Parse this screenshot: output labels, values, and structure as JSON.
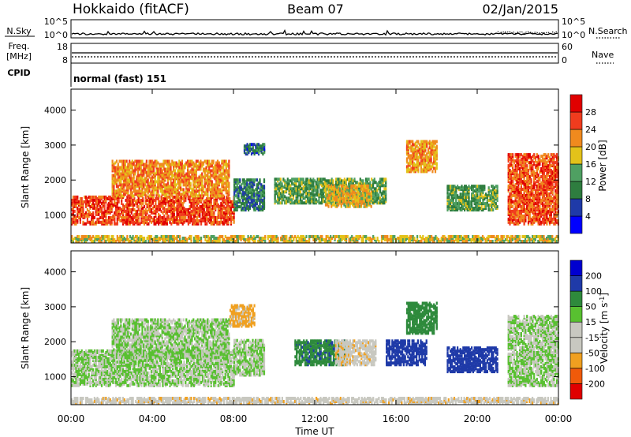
{
  "header": {
    "station": "Hokkaido (fitACF)",
    "beam": "Beam 07",
    "date": "02/Jan/2015"
  },
  "noise_panel": {
    "left_label": "N.Sky",
    "right_label": "N.Search",
    "left_ticks": [
      "10^5",
      "10^0"
    ],
    "right_ticks": [
      "10^5",
      "10^0"
    ]
  },
  "freq_panel": {
    "left_label_1": "Freq.",
    "left_label_2": "[MHz]",
    "right_label": "Nave",
    "left_ticks": [
      "18",
      "8"
    ],
    "right_ticks": [
      "60",
      "0"
    ]
  },
  "cpid": {
    "label": "CPID",
    "mode_text": "normal (fast) 151"
  },
  "time_axis": {
    "label": "Time UT",
    "ticks": [
      "00:00",
      "04:00",
      "08:00",
      "12:00",
      "16:00",
      "20:00",
      "00:00"
    ]
  },
  "colors": {
    "power_scale": [
      "#0000ff",
      "#1f3aa8",
      "#2e7d3f",
      "#4fa062",
      "#e3c21a",
      "#f08a1e",
      "#f03c1e",
      "#e00000"
    ],
    "velocity_scale": [
      "#e00000",
      "#f05a0a",
      "#f0a020",
      "#c8c8c0",
      "#c8c8c0",
      "#58c030",
      "#2e8a3c",
      "#1f3aa8",
      "#0000d0"
    ]
  },
  "chart_data": [
    {
      "type": "heatmap",
      "title": "Power",
      "xlabel": "Time UT",
      "ylabel": "Slant Range [km]",
      "x_ticks": [
        "00:00",
        "04:00",
        "08:00",
        "12:00",
        "16:00",
        "20:00",
        "00:00"
      ],
      "x_range_hours": [
        0,
        24
      ],
      "ylim": [
        200,
        4600
      ],
      "y_ticks": [
        1000,
        2000,
        3000,
        4000
      ],
      "colorbar": {
        "label": "Power [dB]",
        "ticks": [
          4,
          8,
          12,
          16,
          20,
          24,
          28
        ],
        "range": [
          0,
          32
        ]
      },
      "regions": [
        {
          "t_start": 0.0,
          "t_end": 8.0,
          "r_low": 700,
          "r_high": 1500,
          "value": 26
        },
        {
          "t_start": 2.0,
          "t_end": 7.8,
          "r_low": 1500,
          "r_high": 2500,
          "value": 22
        },
        {
          "t_start": 8.0,
          "t_end": 9.5,
          "r_low": 1100,
          "r_high": 2000,
          "value": 10
        },
        {
          "t_start": 8.5,
          "t_end": 9.5,
          "r_low": 2700,
          "r_high": 3000,
          "value": 8
        },
        {
          "t_start": 10.0,
          "t_end": 15.5,
          "r_low": 1300,
          "r_high": 2000,
          "value": 13
        },
        {
          "t_start": 12.5,
          "t_end": 14.8,
          "r_low": 1200,
          "r_high": 1800,
          "value": 19
        },
        {
          "t_start": 16.5,
          "t_end": 18.0,
          "r_low": 2200,
          "r_high": 3100,
          "value": 21
        },
        {
          "t_start": 18.5,
          "t_end": 21.0,
          "r_low": 1100,
          "r_high": 1800,
          "value": 13
        },
        {
          "t_start": 21.5,
          "t_end": 24.0,
          "r_low": 700,
          "r_high": 2700,
          "value": 25
        },
        {
          "t_start": 0.0,
          "t_end": 24.0,
          "r_low": 200,
          "r_high": 350,
          "value": 18
        }
      ]
    },
    {
      "type": "heatmap",
      "title": "Velocity",
      "xlabel": "Time UT",
      "ylabel": "Slant Range [km]",
      "x_ticks": [
        "00:00",
        "04:00",
        "08:00",
        "12:00",
        "16:00",
        "20:00",
        "00:00"
      ],
      "x_range_hours": [
        0,
        24
      ],
      "ylim": [
        200,
        4600
      ],
      "y_ticks": [
        1000,
        2000,
        3000,
        4000
      ],
      "colorbar": {
        "label": "Velocity [m s^-1]",
        "ticks": [
          "-200",
          "-100",
          "-50",
          "-15",
          "15",
          "50",
          "100",
          "200"
        ]
      },
      "regions": [
        {
          "t_start": 0.0,
          "t_end": 8.0,
          "r_low": 700,
          "r_high": 1700,
          "value": 0
        },
        {
          "t_start": 2.0,
          "t_end": 7.8,
          "r_low": 1500,
          "r_high": 2600,
          "value": 0
        },
        {
          "t_start": 7.8,
          "t_end": 9.0,
          "r_low": 2400,
          "r_high": 3000,
          "value": -60
        },
        {
          "t_start": 8.0,
          "t_end": 9.5,
          "r_low": 1000,
          "r_high": 2000,
          "value": 0
        },
        {
          "t_start": 11.0,
          "t_end": 13.5,
          "r_low": 1300,
          "r_high": 2000,
          "value": 40
        },
        {
          "t_start": 13.0,
          "t_end": 15.0,
          "r_low": 1300,
          "r_high": 2000,
          "value": -40
        },
        {
          "t_start": 15.5,
          "t_end": 17.5,
          "r_low": 1300,
          "r_high": 2000,
          "value": 80
        },
        {
          "t_start": 16.5,
          "t_end": 18.0,
          "r_low": 2200,
          "r_high": 3100,
          "value": 30
        },
        {
          "t_start": 18.5,
          "t_end": 21.0,
          "r_low": 1100,
          "r_high": 1800,
          "value": 80
        },
        {
          "t_start": 21.5,
          "t_end": 24.0,
          "r_low": 700,
          "r_high": 2700,
          "value": 0
        },
        {
          "t_start": 0.0,
          "t_end": 24.0,
          "r_low": 200,
          "r_high": 350,
          "value": -40
        }
      ]
    }
  ]
}
